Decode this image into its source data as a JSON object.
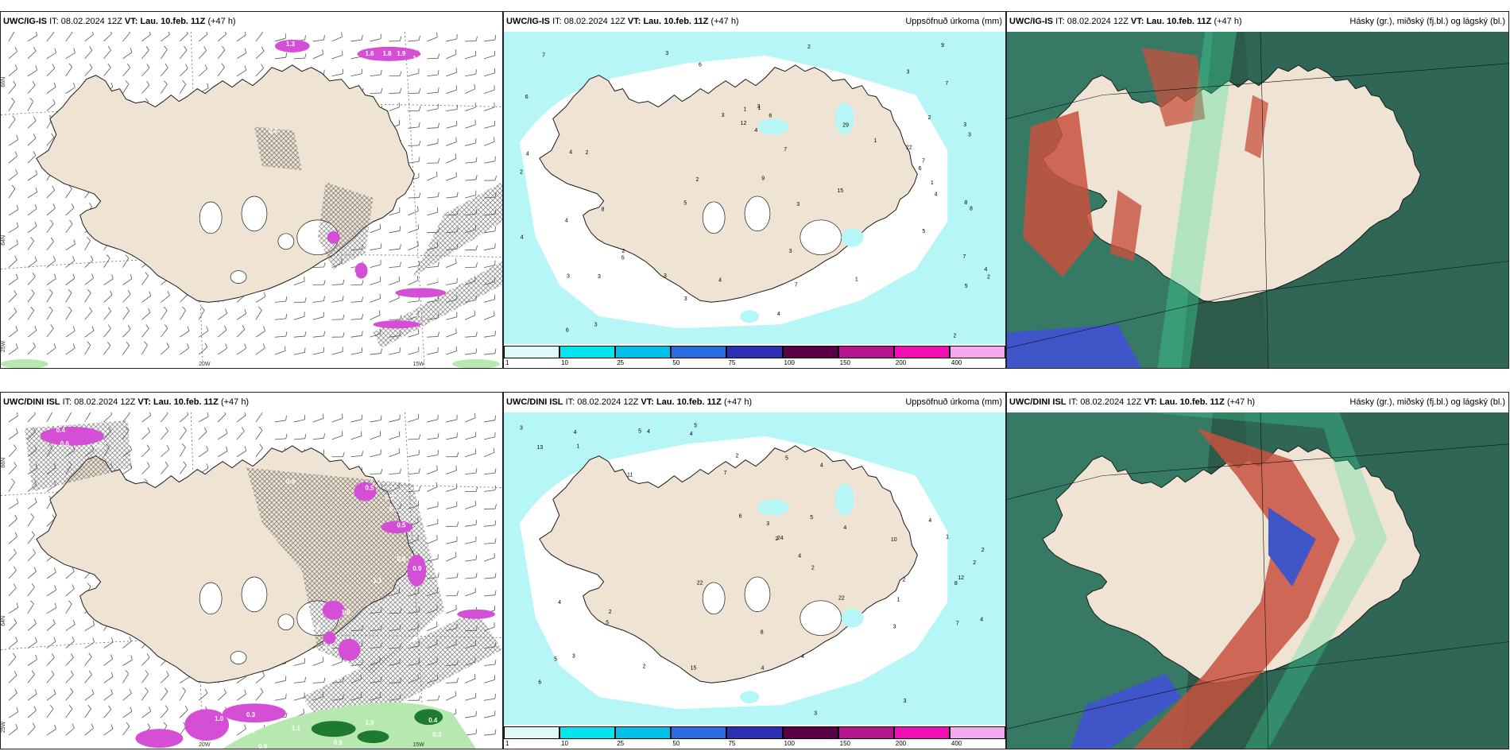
{
  "panels": [
    {
      "id": "p1",
      "title_model": "UWC/IG-IS",
      "title_it_label": "IT:",
      "title_it": "08.02.2024 12Z",
      "title_vt_label": "VT:",
      "title_vt": "Lau. 10.feb. 11Z",
      "title_lead": "(+47 h)",
      "right_title": "",
      "type": "wind"
    },
    {
      "id": "p2",
      "title_model": "UWC/IG-IS",
      "title_it_label": "IT:",
      "title_it": "08.02.2024 12Z",
      "title_vt_label": "VT:",
      "title_vt": "Lau. 10.feb. 11Z",
      "title_lead": "(+47 h)",
      "right_title": "Uppsöfnuð úrkoma (mm)",
      "type": "precip"
    },
    {
      "id": "p3",
      "title_model": "UWC/IG-IS",
      "title_it_label": "IT:",
      "title_it": "08.02.2024 12Z",
      "title_vt_label": "VT:",
      "title_vt": "Lau. 10.feb. 11Z",
      "title_lead": "(+47 h)",
      "right_title": "Hásky (gr.), miðský (fj.bl.) og lágský (bl.)",
      "type": "cloud"
    },
    {
      "id": "p4",
      "title_model": "UWC/DINI ISL",
      "title_it_label": "IT:",
      "title_it": "08.02.2024 12Z",
      "title_vt_label": "VT:",
      "title_vt": "Lau. 10.feb. 11Z",
      "title_lead": "(+47 h)",
      "right_title": "",
      "type": "wind"
    },
    {
      "id": "p5",
      "title_model": "UWC/DINI ISL",
      "title_it_label": "IT:",
      "title_it": "08.02.2024 12Z",
      "title_vt_label": "VT:",
      "title_vt": "Lau. 10.feb. 11Z",
      "title_lead": "(+47 h)",
      "right_title": "Uppsöfnuð úrkoma (mm)",
      "type": "precip"
    },
    {
      "id": "p6",
      "title_model": "UWC/DINI ISL",
      "title_it_label": "IT:",
      "title_it": "08.02.2024 12Z",
      "title_vt_label": "VT:",
      "title_vt": "Lau. 10.feb. 11Z",
      "title_lead": "(+47 h)",
      "right_title": "Hásky (gr.), miðský (fj.bl.) og lágský (bl.)",
      "type": "cloud"
    }
  ],
  "grid_labels": {
    "lat66": "66N",
    "lat64": "64N",
    "lon20": "20W",
    "lon15": "15W",
    "lon25": "25W"
  },
  "precip_colorbar": {
    "ticks": [
      "1",
      "10",
      "25",
      "50",
      "75",
      "100",
      "150",
      "200",
      "400"
    ],
    "colors": [
      "#dff8f8",
      "#00e5ee",
      "#00bfe8",
      "#2a6be0",
      "#2f2fb4",
      "#5a0046",
      "#b4148c",
      "#f00fb4",
      "#f5aaf0"
    ]
  },
  "precip_labels_top": [
    "2",
    "3",
    "7",
    "9",
    "12",
    "2",
    "2",
    "7",
    "6",
    "5",
    "3",
    "1",
    "3",
    "6",
    "3",
    "4",
    "4",
    "4",
    "3",
    "9",
    "1",
    "3",
    "3",
    "7",
    "2",
    "3",
    "2",
    "5",
    "3",
    "4",
    "8",
    "15",
    "6",
    "2",
    "4",
    "3",
    "7",
    "3",
    "5",
    "2",
    "4",
    "8",
    "4",
    "6",
    "4",
    "7",
    "5",
    "4",
    "6",
    "8",
    "7",
    "3",
    "29",
    "22",
    "1",
    "1",
    "3",
    "2",
    "1"
  ],
  "precip_labels_bottom": [
    "3",
    "22",
    "5",
    "4",
    "2",
    "3",
    "3",
    "11",
    "7",
    "2",
    "4",
    "2",
    "2",
    "4",
    "5",
    "12",
    "13",
    "8",
    "24",
    "10",
    "22",
    "5",
    "4",
    "3",
    "4",
    "3",
    "6",
    "2",
    "2",
    "1",
    "1",
    "4",
    "4",
    "1",
    "3",
    "4",
    "5",
    "5",
    "4",
    "8",
    "6",
    "15",
    "2",
    "7",
    "2",
    "4",
    "5",
    "4"
  ],
  "wind_labels_top": [
    "1.3",
    "1",
    "1.6",
    "1.8",
    "1.9",
    "1.8",
    "0.3",
    "1.3",
    "1.3",
    "0.4"
  ],
  "wind_labels_bottom": [
    "0.4",
    "0.6",
    "0.3",
    "0.6",
    "0.3",
    "0.5",
    "0.2",
    "0.3",
    "0.5",
    "0.6",
    "0.9",
    "1.1",
    "1.8",
    "1.5",
    "1.6",
    "1.0",
    "0.3",
    "0.3",
    "0.6",
    "0.9",
    "1.1",
    "0.9",
    "1.9",
    "0.4",
    "0.3"
  ],
  "colors": {
    "land": "#efe3d4",
    "coast": "#1a1a1a",
    "ocean_precip": "#b7f6f7",
    "dry": "#ffffff",
    "magenta": "#d44fd6",
    "green_light": "#b7e8b0",
    "green_dark": "#1e7a2e",
    "cloud_base": "#2c5b4a",
    "cloud_teal": "#3e8f7a",
    "cloud_high_red": "#c8513e",
    "cloud_blue": "#3f55c8",
    "cloud_green_edge": "#3fe39a"
  }
}
